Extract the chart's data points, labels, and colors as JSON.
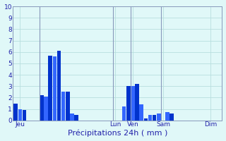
{
  "xlabel": "Précipitations 24h ( mm )",
  "ylim": [
    0,
    10
  ],
  "background_color": "#e0f8f8",
  "bar_color_dark": "#0033cc",
  "bar_color_light": "#3366ff",
  "grid_color": "#b8dede",
  "text_color": "#2222aa",
  "vline_color": "#8899bb",
  "day_labels": [
    "Jeu",
    "Lun",
    "Ven",
    "Sam",
    "Dim"
  ],
  "tick_fontsize": 6.5,
  "xlabel_fontsize": 8,
  "bar_values": [
    1.5,
    1.0,
    0.9,
    0.0,
    0.0,
    0.0,
    2.2,
    2.1,
    5.7,
    5.6,
    6.1,
    2.5,
    2.5,
    0.6,
    0.5,
    0.0,
    0.0,
    0.0,
    0.0,
    0.0,
    0.0,
    0.0,
    0.0,
    0.0,
    0.0,
    1.2,
    3.0,
    3.0,
    3.2,
    1.4,
    0.2,
    0.5,
    0.5,
    0.6,
    0.0,
    0.7,
    0.6,
    0.0,
    0.0,
    0.0,
    0.0,
    0.0,
    0.0,
    0.0,
    0.0,
    0.0,
    0.0,
    0.0
  ],
  "n_bars": 48,
  "day_tick_positions": [
    1,
    23,
    27,
    34,
    45
  ],
  "vline_positions": [
    5.5,
    22.5,
    26.5,
    33.5
  ]
}
